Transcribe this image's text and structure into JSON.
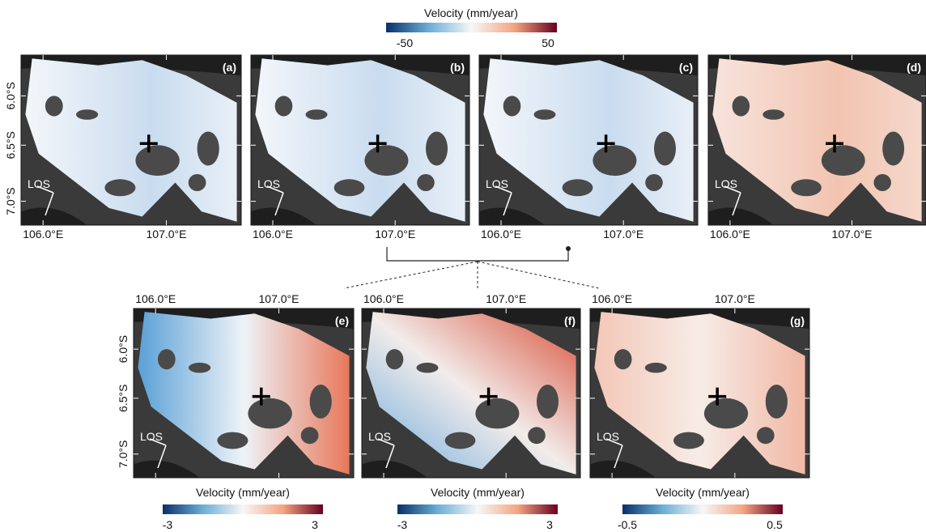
{
  "top_colorbar": {
    "title": "Velocity (mm/year)",
    "min_label": "-50",
    "max_label": "50"
  },
  "panels": [
    {
      "label": "(a)",
      "los": "LOS",
      "lon_labels": [
        "106.0°E",
        "107.0°E"
      ],
      "lat_labels": [
        "6.0°S",
        "6.5°S",
        "7.0°S"
      ]
    },
    {
      "label": "(b)",
      "los": "LOS",
      "lon_labels": [
        "106.0°E",
        "107.0°E"
      ]
    },
    {
      "label": "(c)",
      "los": "LOS",
      "lon_labels": [
        "106.0°E",
        "107.0°E"
      ]
    },
    {
      "label": "(d)",
      "los": "LOS",
      "lon_labels": [
        "106.0°E",
        "107.0°E"
      ]
    },
    {
      "label": "(e)",
      "los": "LOS",
      "lon_labels": [
        "106.0°E",
        "107.0°E"
      ],
      "lat_labels": [
        "6.0°S",
        "6.5°S",
        "7.0°S"
      ]
    },
    {
      "label": "(f)",
      "los": "LOS",
      "lon_labels": [
        "106.0°E",
        "107.0°E"
      ]
    },
    {
      "label": "(g)",
      "los": "LOS",
      "lon_labels": [
        "106.0°E",
        "107.0°E"
      ]
    }
  ],
  "bottom_colorbars": [
    {
      "title": "Velocity (mm/year)",
      "min_label": "-3",
      "max_label": "3"
    },
    {
      "title": "Velocity (mm/year)",
      "min_label": "-3",
      "max_label": "3"
    },
    {
      "title": "Velocity (mm/year)",
      "min_label": "-0.5",
      "max_label": "0.5"
    }
  ]
}
